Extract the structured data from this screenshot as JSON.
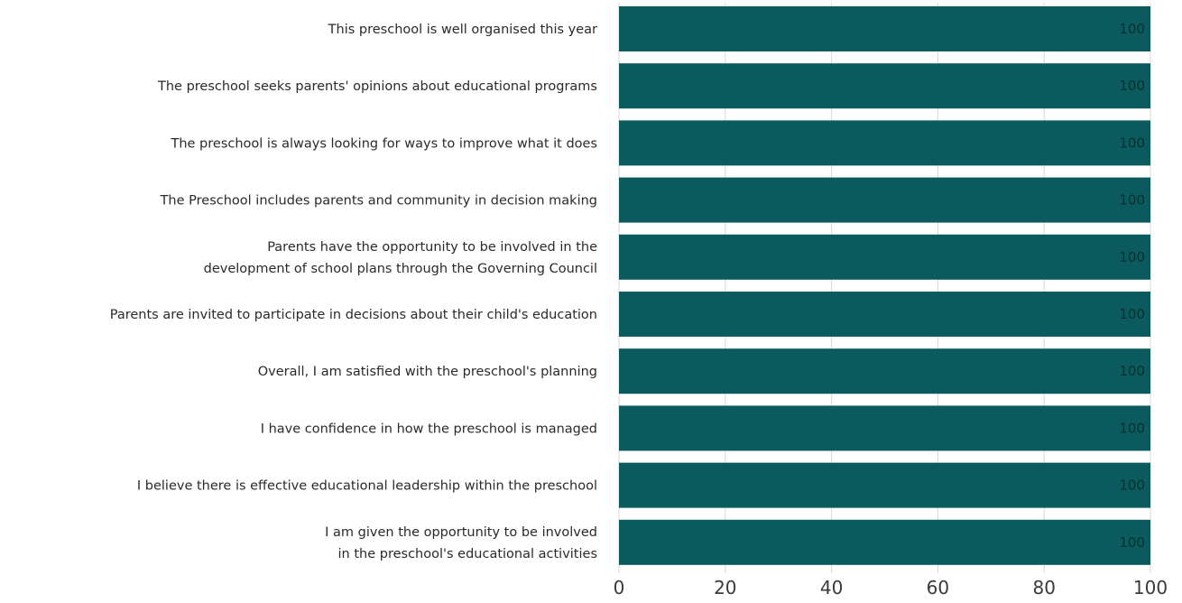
{
  "chart_data": {
    "type": "bar",
    "orientation": "horizontal",
    "categories": [
      [
        "This preschool is well organised this year"
      ],
      [
        "The preschool seeks parents' opinions about educational programs"
      ],
      [
        "The preschool is always looking for ways to improve what it does"
      ],
      [
        "The Preschool includes parents and community in decision making"
      ],
      [
        "Parents have the opportunity to be involved in the",
        "development of school plans through the Governing Council"
      ],
      [
        "Parents are invited to participate in decisions about their child's education"
      ],
      [
        "Overall, I am satisfied with the preschool's planning"
      ],
      [
        "I have confidence in how the preschool is managed"
      ],
      [
        "I believe there is effective educational leadership within the preschool"
      ],
      [
        "I am given the opportunity to be involved",
        "in the preschool's educational activities"
      ]
    ],
    "values": [
      100,
      100,
      100,
      100,
      100,
      100,
      100,
      100,
      100,
      100
    ],
    "data_labels": [
      "100",
      "100",
      "100",
      "100",
      "100",
      "100",
      "100",
      "100",
      "100",
      "100"
    ],
    "xlim": [
      0,
      100
    ],
    "xticks": [
      0,
      20,
      40,
      60,
      80,
      100
    ],
    "xtick_labels": [
      "0",
      "20",
      "40",
      "60",
      "80",
      "100"
    ],
    "grid": true,
    "title": "",
    "xlabel": "",
    "ylabel": "",
    "colors": {
      "bar": "#0b5a5e",
      "grid": "#d8d8d8",
      "background": "#ffffff"
    }
  }
}
